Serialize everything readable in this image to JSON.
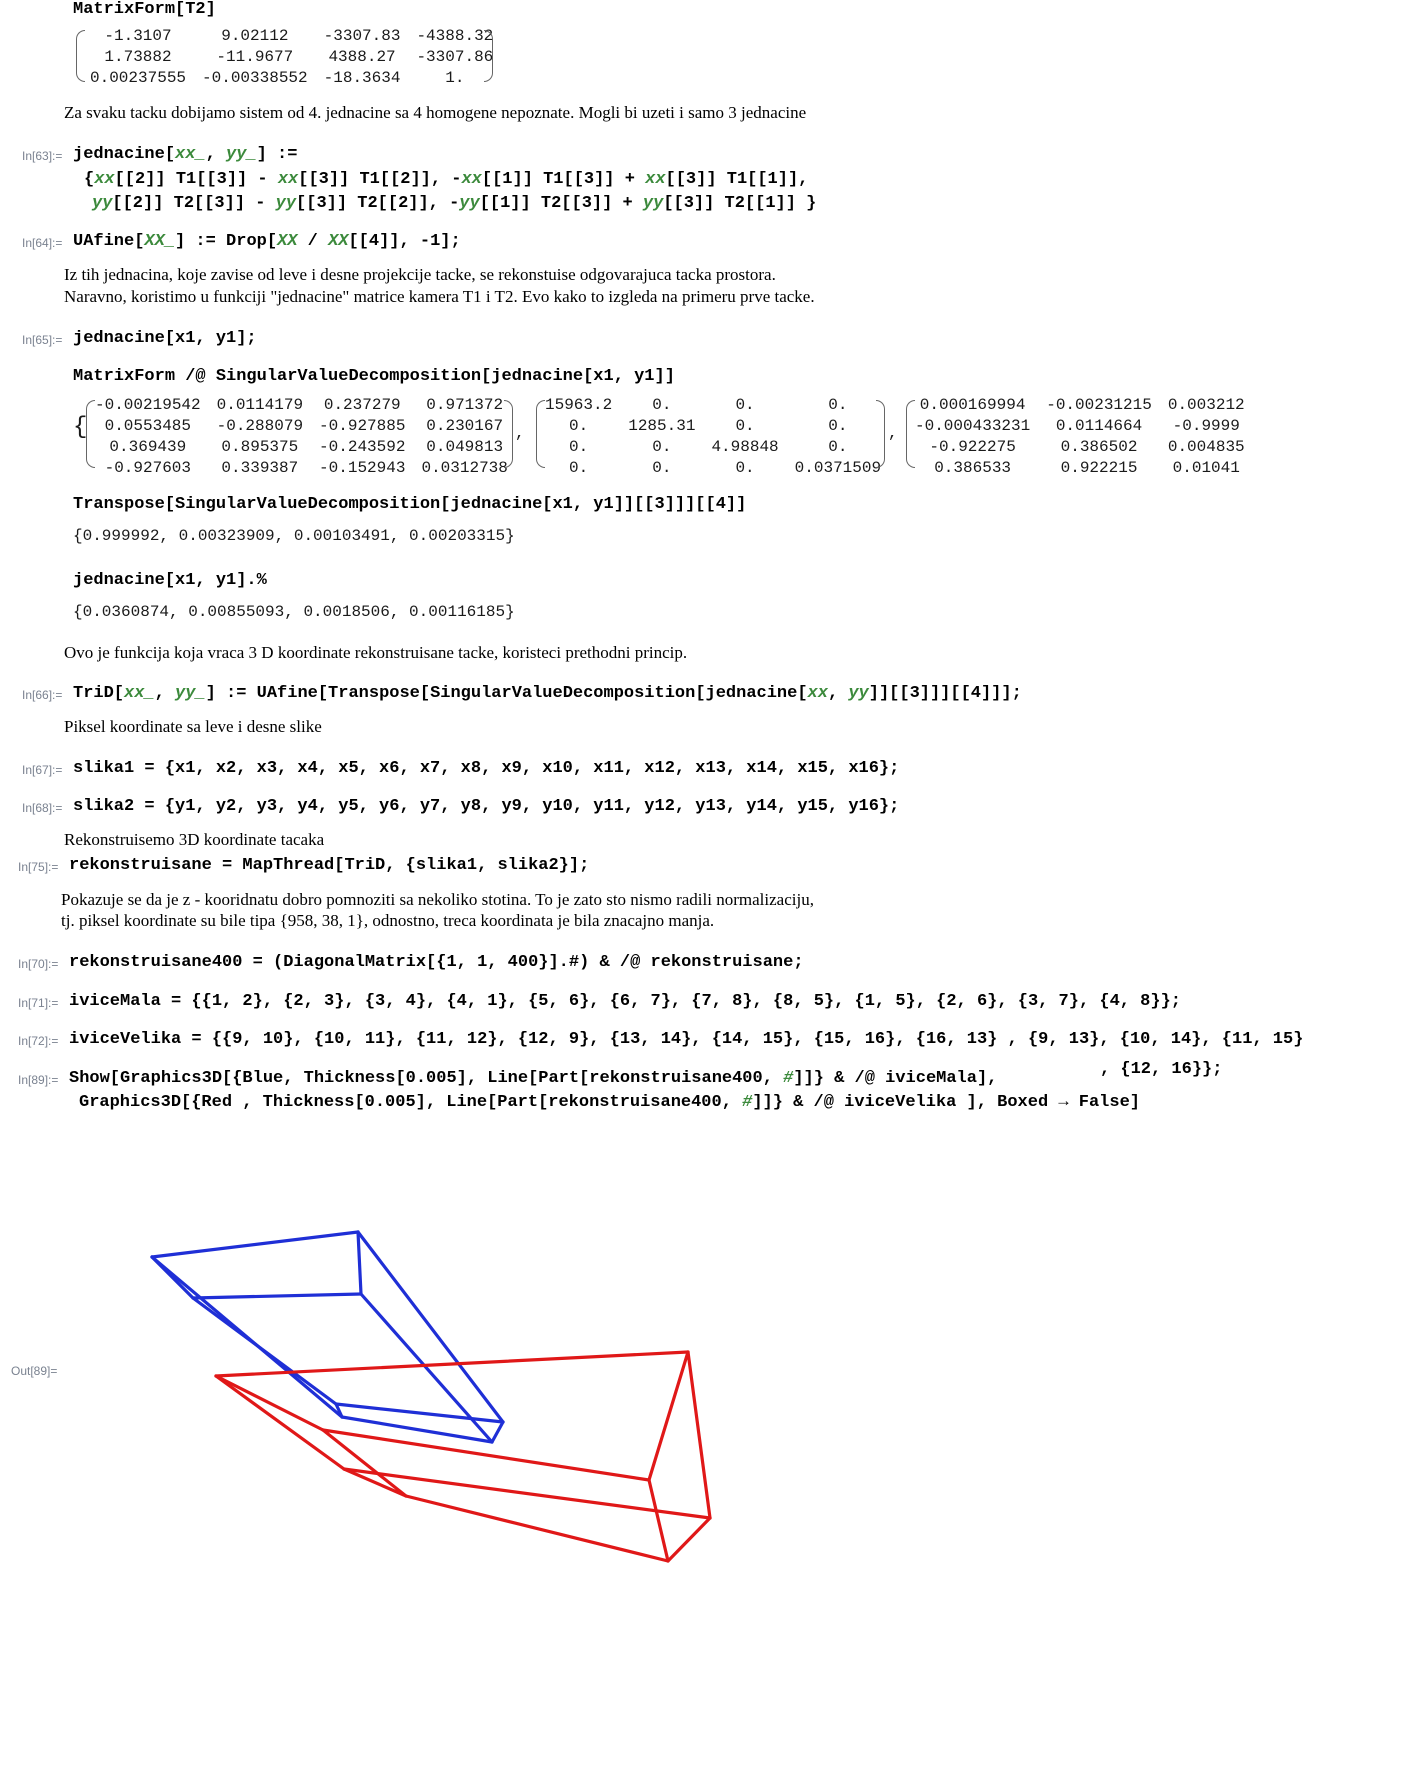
{
  "t2": {
    "input": "MatrixForm[T2]",
    "matrix": [
      [
        "-1.3107",
        "9.02112",
        "-3307.83",
        "-4388.32"
      ],
      [
        "1.73882",
        "-11.9677",
        "4388.27",
        "-3307.86"
      ],
      [
        "0.00237555",
        "-0.00338552",
        "-18.3634",
        "1."
      ]
    ]
  },
  "p1": "Za svaku tacku dobijamo sistem od 4. jednacine sa 4 homogene nepoznate. Mogli bi uzeti i samo 3 jednacine",
  "in63": {
    "label": "In[63]:=",
    "line1_a": "jednacine[",
    "line1_xx": "xx_",
    "line1_b": ", ",
    "line1_yy": "yy_",
    "line1_c": "] :=",
    "line2": "{xx[[2]] T1[[3]] - xx[[3]] T1[[2]], -xx[[1]] T1[[3]] + xx[[3]] T1[[1]],",
    "line3": "yy[[2]] T2[[3]] - yy[[3]] T2[[2]], -yy[[1]] T2[[3]] + yy[[3]] T2[[1]] }"
  },
  "in64": {
    "label": "In[64]:=",
    "a": "UAfine[",
    "xx1": "XX_",
    "b": "] := Drop[",
    "xx2": "XX",
    "c": " / ",
    "xx3": "XX",
    "d": "[[4]], -1];"
  },
  "p2a": "Iz tih jednacina, koje zavise od leve i desne projekcije tacke, se rekonstuise odgovarajuca tacka prostora.",
  "p2b": "Naravno, koristimo u funkciji \"jednacine\" matrice kamera T1 i T2. Evo kako to izgleda na primeru prve tacke.",
  "in65": {
    "label": "In[65]:=",
    "code": "jednacine[x1, y1];",
    "svd_input": "MatrixForm /@ SingularValueDecomposition[jednacine[x1, y1]]",
    "u": [
      [
        "-0.00219542",
        "0.0114179",
        "0.237279",
        "0.971372"
      ],
      [
        "0.0553485",
        "-0.288079",
        "-0.927885",
        "0.230167"
      ],
      [
        "0.369439",
        "0.895375",
        "-0.243592",
        "0.049813"
      ],
      [
        "-0.927603",
        "0.339387",
        "-0.152943",
        "0.0312738"
      ]
    ],
    "w": [
      [
        "15963.2",
        "0.",
        "0.",
        "0."
      ],
      [
        "0.",
        "1285.31",
        "0.",
        "0."
      ],
      [
        "0.",
        "0.",
        "4.98848",
        "0."
      ],
      [
        "0.",
        "0.",
        "0.",
        "0.0371509"
      ]
    ],
    "v": [
      [
        "0.000169994",
        "-0.00231215",
        "0.003212"
      ],
      [
        "-0.000433231",
        "0.0114664",
        "-0.9999"
      ],
      [
        "-0.922275",
        "0.386502",
        "0.004835"
      ],
      [
        "0.386533",
        "0.922215",
        "0.01041"
      ]
    ],
    "transpose_input": "Transpose[SingularValueDecomposition[jednacine[x1, y1]][[3]]][[4]]",
    "transpose_output": "{0.999992, 0.00323909, 0.00103491, 0.00203315}",
    "dot_input": "jednacine[x1, y1].%",
    "dot_output": "{0.0360874, 0.00855093, 0.0018506, 0.00116185}"
  },
  "p3": "Ovo je funkcija koja vraca 3 D koordinate rekonstruisane tacke, koristeci prethodni princip.",
  "in66": {
    "label": "In[66]:=",
    "a": "TriD[",
    "xx": "xx_",
    "b": ", ",
    "yy": "yy_",
    "c": "] := UAfine[Transpose[SingularValueDecomposition[jednacine[",
    "xx2": "xx",
    "d": ", ",
    "yy2": "yy",
    "e": "]][[3]]][[4]]];"
  },
  "p4": "Piksel koordinate sa leve i desne slike",
  "in67": {
    "label": "In[67]:=",
    "code": "slika1 = {x1, x2, x3, x4, x5, x6, x7, x8, x9, x10, x11, x12, x13, x14, x15, x16};"
  },
  "in68": {
    "label": "In[68]:=",
    "code": "slika2 = {y1, y2, y3, y4, y5, y6, y7, y8, y9, y10, y11, y12, y13, y14, y15, y16};"
  },
  "p5": "Rekonstruisemo 3D koordinate tacaka",
  "in75": {
    "label": "In[75]:=",
    "code": "rekonstruisane = MapThread[TriD, {slika1, slika2}];"
  },
  "p6a": "Pokazuje se da je z - kooridnatu dobro pomnoziti sa nekoliko stotina. To je zato sto nismo radili normalizaciju,",
  "p6b": "tj. piksel koordinate su bile tipa {958, 38, 1}, odnostno, treca koordinata je bila znacajno manja.",
  "in70": {
    "label": "In[70]:=",
    "code": "rekonstruisane400 = (DiagonalMatrix[{1, 1, 400}].#) & /@ rekonstruisane;"
  },
  "in71": {
    "label": "In[71]:=",
    "code": "iviceMala = {{1, 2}, {2, 3}, {3, 4}, {4, 1}, {5, 6}, {6, 7}, {7, 8}, {8, 5}, {1, 5}, {2, 6}, {3, 7}, {4, 8}};"
  },
  "in72": {
    "label": "In[72]:=",
    "code": "iviceVelika = {{9, 10}, {10, 11}, {11, 12}, {12, 9}, {13, 14}, {14, 15}, {15, 16}, {16, 13} , {9, 13}, {10, 14}, {11, 15}",
    "wrap": ", {12, 16}};"
  },
  "in89": {
    "label": "In[89]:=",
    "line1_a": "Show[Graphics3D[{Blue, Thickness[0.005], Line[Part[rekonstruisane400, ",
    "line1_hash": "#",
    "line1_b": "]]} & /@ iviceMala],",
    "line2_a": "Graphics3D[{Red , Thickness[0.005], Line[Part[rekonstruisane400, ",
    "line2_hash": "#",
    "line2_b": "]]} & /@ iviceVelika ], Boxed → False]",
    "out_label": "Out[89]="
  },
  "graphics": {
    "blue": "#1f2fd6",
    "red": "#e01818"
  }
}
